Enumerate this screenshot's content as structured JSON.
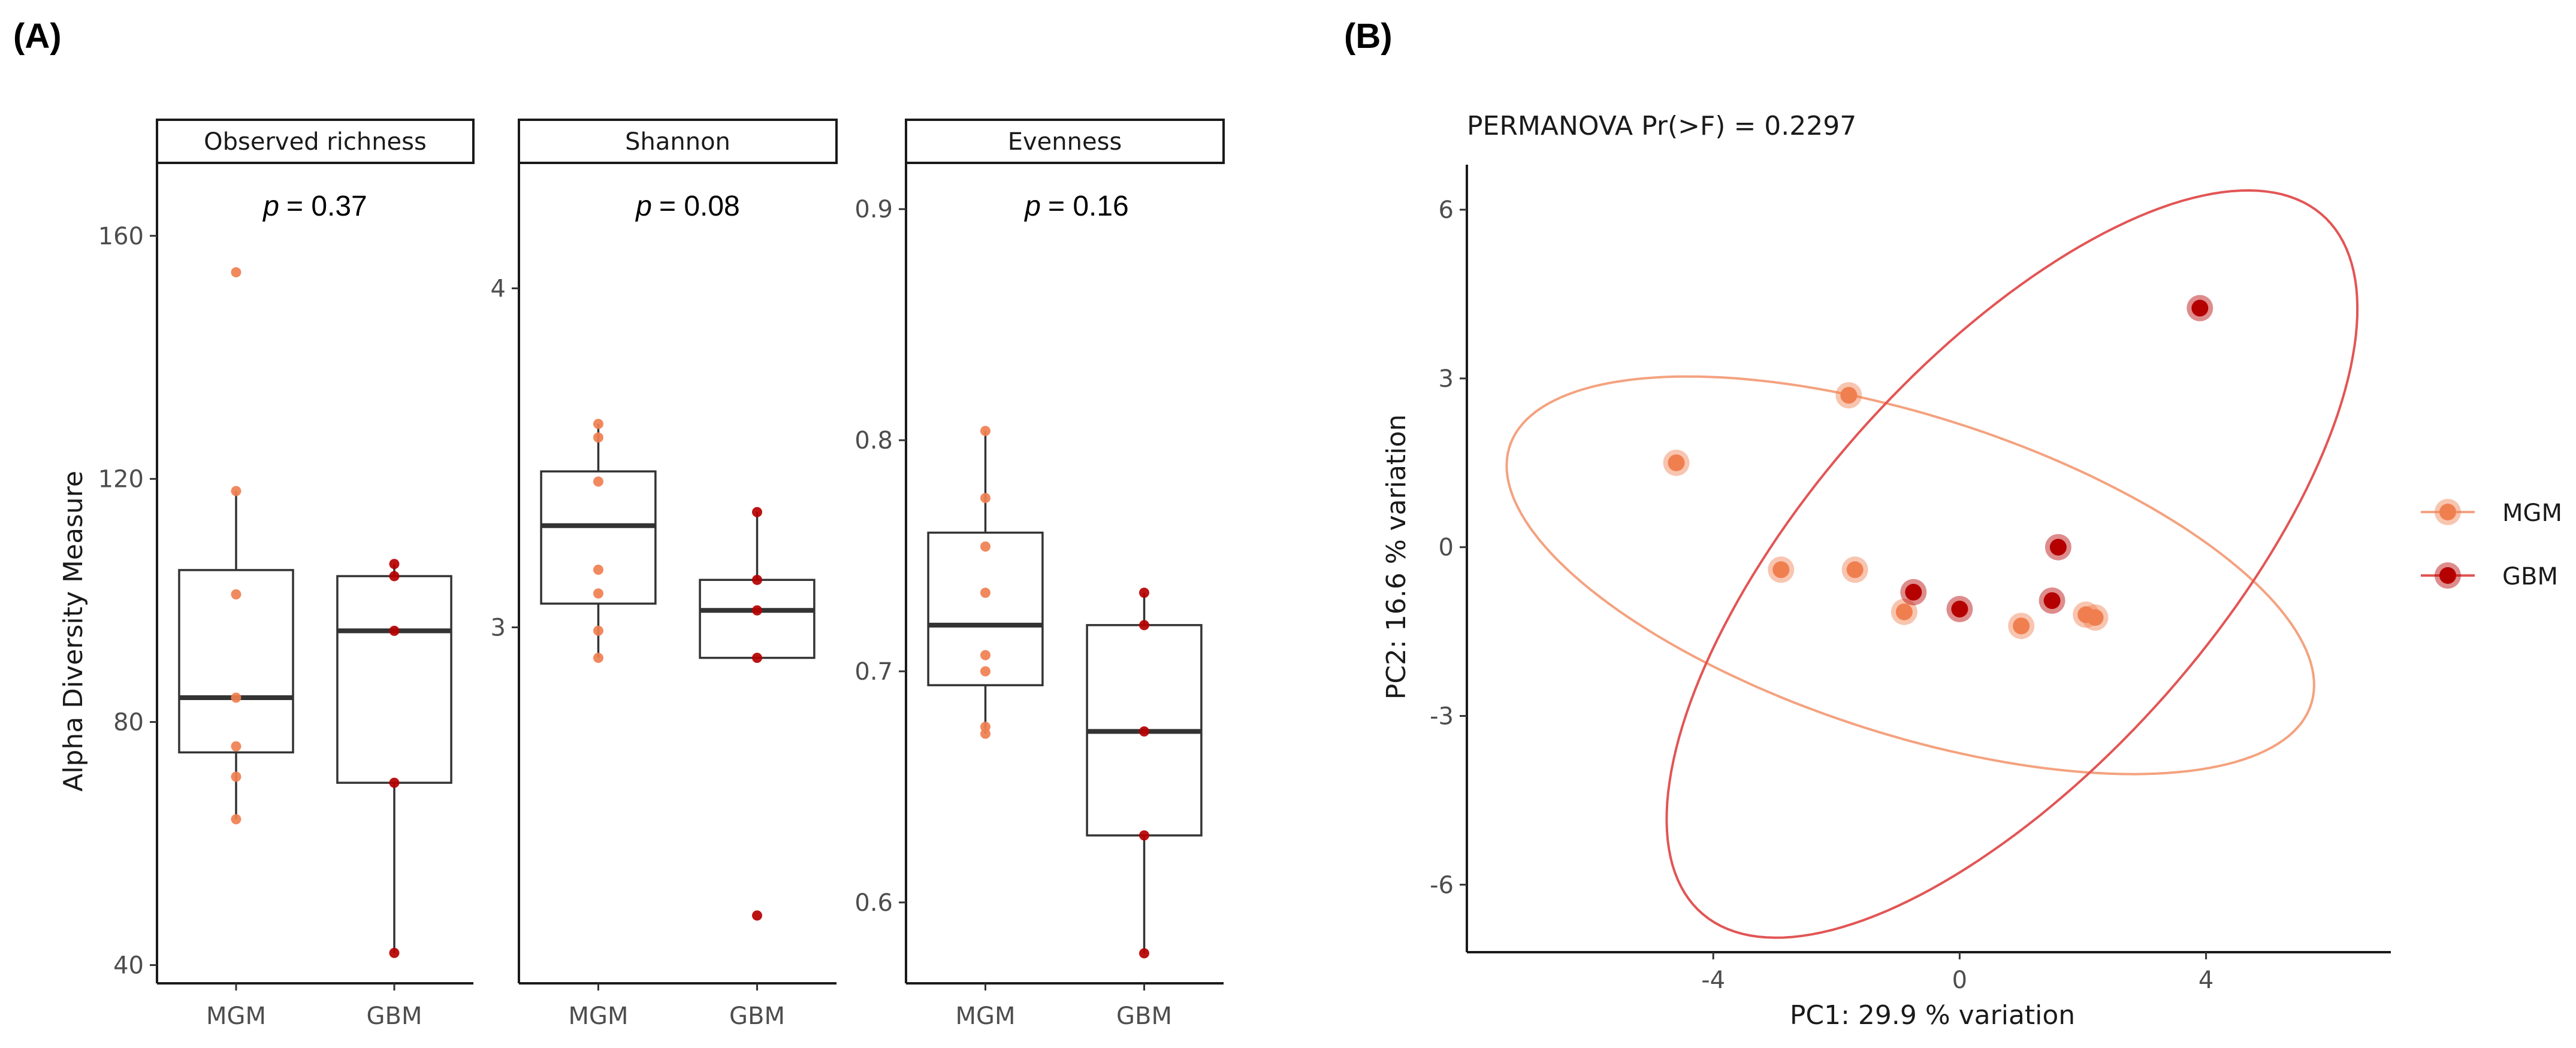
{
  "panel_labels": {
    "a": "(A)",
    "b": "(B)"
  },
  "colors": {
    "MGM": "#F07F50",
    "GBM": "#B50000",
    "MGM_ellipse": "#F4A27F",
    "GBM_ellipse": "#E25555"
  },
  "chart_data": [
    {
      "type": "box",
      "panel": "A",
      "ylabel": "Alpha Diversity Measure",
      "categories": [
        "MGM",
        "GBM"
      ],
      "facets": [
        {
          "title": "Observed richness",
          "p_label": "p",
          "p_value": "= 0.37",
          "ylim": [
            37,
            172
          ],
          "yticks": [
            40,
            80,
            120,
            160
          ],
          "boxes": [
            {
              "group": "MGM",
              "min": 64,
              "q1": 75,
              "median": 84,
              "q3": 105,
              "max": 118
            },
            {
              "group": "GBM",
              "min": 42,
              "q1": 70,
              "median": 95,
              "q3": 104,
              "max": 106
            }
          ],
          "points": [
            {
              "group": "MGM",
              "values": [
                154,
                118,
                101,
                84,
                76,
                71,
                64
              ]
            },
            {
              "group": "GBM",
              "values": [
                106,
                104,
                95,
                70,
                42
              ]
            }
          ]
        },
        {
          "title": "Shannon",
          "p_label": "p",
          "p_value": "= 0.08",
          "ylim": [
            1.95,
            4.37
          ],
          "yticks": [
            3,
            4
          ],
          "boxes": [
            {
              "group": "MGM",
              "min": 2.91,
              "q1": 3.07,
              "median": 3.3,
              "q3": 3.46,
              "max": 3.6
            },
            {
              "group": "GBM",
              "min": 2.91,
              "q1": 2.91,
              "median": 3.05,
              "q3": 3.14,
              "max": 3.34
            }
          ],
          "points": [
            {
              "group": "MGM",
              "values": [
                3.6,
                3.56,
                3.43,
                3.17,
                3.1,
                2.99,
                2.91
              ]
            },
            {
              "group": "GBM",
              "values": [
                3.34,
                3.14,
                3.05,
                2.91,
                2.15
              ]
            }
          ]
        },
        {
          "title": "Evenness",
          "p_label": "p",
          "p_value": "= 0.16",
          "ylim": [
            0.565,
            0.92
          ],
          "yticks": [
            0.6,
            0.7,
            0.8,
            0.9
          ],
          "boxes": [
            {
              "group": "MGM",
              "min": 0.673,
              "q1": 0.694,
              "median": 0.72,
              "q3": 0.76,
              "max": 0.804
            },
            {
              "group": "GBM",
              "min": 0.578,
              "q1": 0.629,
              "median": 0.674,
              "q3": 0.72,
              "max": 0.734
            }
          ],
          "points": [
            {
              "group": "MGM",
              "values": [
                0.804,
                0.775,
                0.754,
                0.734,
                0.707,
                0.7,
                0.676,
                0.673
              ]
            },
            {
              "group": "GBM",
              "values": [
                0.734,
                0.72,
                0.674,
                0.629,
                0.578
              ]
            }
          ]
        }
      ]
    },
    {
      "type": "scatter",
      "panel": "B",
      "title": "PERMANOVA Pr(>F) = 0.2297",
      "xlabel": "PC1:  29.9 % variation",
      "ylabel": "PC2:  16.6 % variation",
      "xlim": [
        -8,
        7
      ],
      "ylim": [
        -7.2,
        6.8
      ],
      "xticks": [
        -4,
        0,
        4
      ],
      "yticks": [
        -6,
        -3,
        0,
        3,
        6
      ],
      "legend": [
        "MGM",
        "GBM"
      ],
      "legend_position": "right",
      "series": [
        {
          "name": "MGM",
          "points": [
            [
              -4.6,
              1.5
            ],
            [
              -1.8,
              2.7
            ],
            [
              -2.9,
              -0.4
            ],
            [
              -1.7,
              -0.4
            ],
            [
              -0.9,
              -1.15
            ],
            [
              1.0,
              -1.4
            ],
            [
              2.05,
              -1.2
            ],
            [
              2.2,
              -1.25
            ]
          ],
          "ellipse": {
            "cx": -0.8,
            "cy": -0.5,
            "a": 6.9,
            "b": 2.8,
            "angle_deg": -20
          }
        },
        {
          "name": "GBM",
          "points": [
            [
              3.9,
              4.25
            ],
            [
              1.6,
              0.0
            ],
            [
              -0.75,
              -0.8
            ],
            [
              0.0,
              -1.1
            ],
            [
              1.5,
              -0.95
            ]
          ],
          "ellipse": {
            "cx": 0.85,
            "cy": -0.3,
            "a": 8.0,
            "b": 3.4,
            "angle_deg": 52
          }
        }
      ]
    }
  ]
}
